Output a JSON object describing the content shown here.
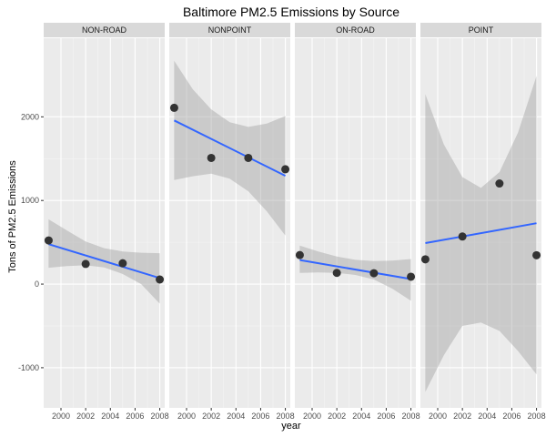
{
  "chart_data": {
    "type": "scatter",
    "title": "Baltimore PM2.5 Emissions by Source",
    "xlabel": "year",
    "ylabel": "Tons of PM2.5 Emissions",
    "x_ticks": [
      2000,
      2002,
      2004,
      2006,
      2008
    ],
    "x_tick_labels": [
      "2000",
      "2002",
      "2004",
      "2006",
      "2008"
    ],
    "xlim": [
      1998.6,
      2008.4
    ],
    "y_ticks": [
      -1000,
      0,
      1000,
      2000
    ],
    "y_tick_labels": [
      "-1000",
      "0",
      "1000",
      "2000"
    ],
    "ylim": [
      -1480,
      2940
    ],
    "grid": true,
    "smoothing": "linear fit with confidence band",
    "colors": {
      "panel_bg": "#ebebeb",
      "grid_major": "#ffffff",
      "grid_minor": "#f5f5f5",
      "strip_bg": "#d9d9d9",
      "point": "#333333",
      "line": "#3366ff",
      "band": "#999999"
    },
    "facets": [
      {
        "name": "NON-ROAD",
        "points": [
          {
            "x": 1999,
            "y": 522
          },
          {
            "x": 2002,
            "y": 241
          },
          {
            "x": 2005,
            "y": 249
          },
          {
            "x": 2008,
            "y": 55
          }
        ],
        "fit": {
          "x0": 1999,
          "y0": 478,
          "x1": 2008,
          "y1": 72
        },
        "band": [
          {
            "x": 1999,
            "lo": 195,
            "hi": 775
          },
          {
            "x": 2000.5,
            "lo": 215,
            "hi": 640
          },
          {
            "x": 2002,
            "lo": 225,
            "hi": 510
          },
          {
            "x": 2003.5,
            "lo": 200,
            "hi": 430
          },
          {
            "x": 2005,
            "lo": 120,
            "hi": 390
          },
          {
            "x": 2006.5,
            "lo": 0,
            "hi": 375
          },
          {
            "x": 2008,
            "lo": -235,
            "hi": 370
          }
        ]
      },
      {
        "name": "NONPOINT",
        "points": [
          {
            "x": 1999,
            "y": 2108
          },
          {
            "x": 2002,
            "y": 1509
          },
          {
            "x": 2005,
            "y": 1509
          },
          {
            "x": 2008,
            "y": 1373
          }
        ],
        "fit": {
          "x0": 1999,
          "y0": 1957,
          "x1": 2008,
          "y1": 1295
        },
        "band": [
          {
            "x": 1999,
            "lo": 1245,
            "hi": 2670
          },
          {
            "x": 2000.5,
            "lo": 1290,
            "hi": 2330
          },
          {
            "x": 2002,
            "lo": 1320,
            "hi": 2090
          },
          {
            "x": 2003.5,
            "lo": 1260,
            "hi": 1935
          },
          {
            "x": 2005,
            "lo": 1110,
            "hi": 1880
          },
          {
            "x": 2006.5,
            "lo": 870,
            "hi": 1920
          },
          {
            "x": 2008,
            "lo": 580,
            "hi": 2010
          }
        ]
      },
      {
        "name": "ON-ROAD",
        "points": [
          {
            "x": 1999,
            "y": 347
          },
          {
            "x": 2002,
            "y": 134
          },
          {
            "x": 2005,
            "y": 130
          },
          {
            "x": 2008,
            "y": 88
          }
        ],
        "fit": {
          "x0": 1999,
          "y0": 288,
          "x1": 2008,
          "y1": 60
        },
        "band": [
          {
            "x": 1999,
            "lo": 135,
            "hi": 460
          },
          {
            "x": 2000.5,
            "lo": 140,
            "hi": 390
          },
          {
            "x": 2002,
            "lo": 135,
            "hi": 330
          },
          {
            "x": 2003.5,
            "lo": 110,
            "hi": 290
          },
          {
            "x": 2005,
            "lo": 55,
            "hi": 275
          },
          {
            "x": 2006.5,
            "lo": -55,
            "hi": 280
          },
          {
            "x": 2008,
            "lo": -200,
            "hi": 300
          }
        ]
      },
      {
        "name": "POINT",
        "points": [
          {
            "x": 1999,
            "y": 296
          },
          {
            "x": 2002,
            "y": 569
          },
          {
            "x": 2005,
            "y": 1203
          },
          {
            "x": 2008,
            "y": 345
          }
        ],
        "fit": {
          "x0": 1999,
          "y0": 490,
          "x1": 2008,
          "y1": 728
        },
        "band": [
          {
            "x": 1999,
            "lo": -1290,
            "hi": 2270
          },
          {
            "x": 2000.5,
            "lo": -850,
            "hi": 1670
          },
          {
            "x": 2002,
            "lo": -500,
            "hi": 1280
          },
          {
            "x": 2003.5,
            "lo": -460,
            "hi": 1150
          },
          {
            "x": 2005,
            "lo": -560,
            "hi": 1340
          },
          {
            "x": 2006.5,
            "lo": -800,
            "hi": 1810
          },
          {
            "x": 2008,
            "lo": -1080,
            "hi": 2490
          }
        ]
      }
    ]
  }
}
